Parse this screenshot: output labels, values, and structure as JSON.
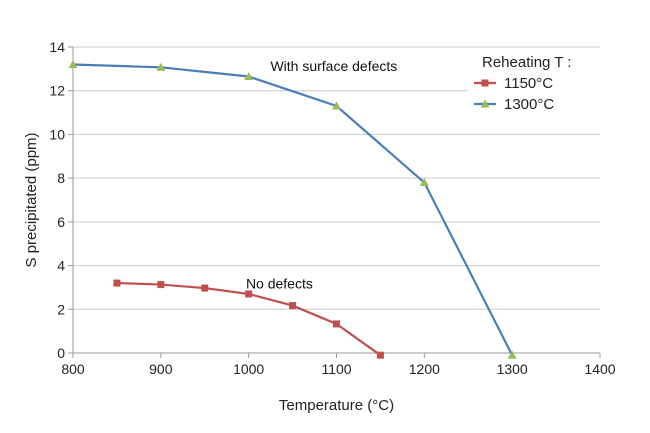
{
  "chart_data": {
    "type": "line",
    "title": "",
    "xlabel": "Temperature (°C)",
    "ylabel": "S precipitated (ppm)",
    "xlim": [
      800,
      1400
    ],
    "ylim": [
      0,
      14
    ],
    "x_ticks": [
      800,
      900,
      1000,
      1100,
      1200,
      1300,
      1400
    ],
    "y_ticks": [
      0,
      2,
      4,
      6,
      8,
      10,
      12,
      14
    ],
    "grid": "horizontal",
    "legend": {
      "title": "Reheating T :",
      "placement": "top-right"
    },
    "series": [
      {
        "name": "1150°C",
        "color": "#c0504d",
        "marker": "square",
        "x": [
          850,
          900,
          950,
          1000,
          1050,
          1100,
          1150
        ],
        "y": [
          3.2,
          3.13,
          2.97,
          2.7,
          2.17,
          1.33,
          -0.1
        ]
      },
      {
        "name": "1300°C",
        "color": "#4a7ebb",
        "marker_color": "#9bbb59",
        "marker": "triangle",
        "x": [
          800,
          900,
          1000,
          1100,
          1200,
          1300
        ],
        "y": [
          13.2,
          13.07,
          12.65,
          11.3,
          7.8,
          -0.1
        ]
      }
    ],
    "annotations": [
      {
        "text": "With surface defects",
        "x": 1097,
        "y": 12.9
      },
      {
        "text": "No defects",
        "x": 1035,
        "y": 2.95
      }
    ]
  }
}
